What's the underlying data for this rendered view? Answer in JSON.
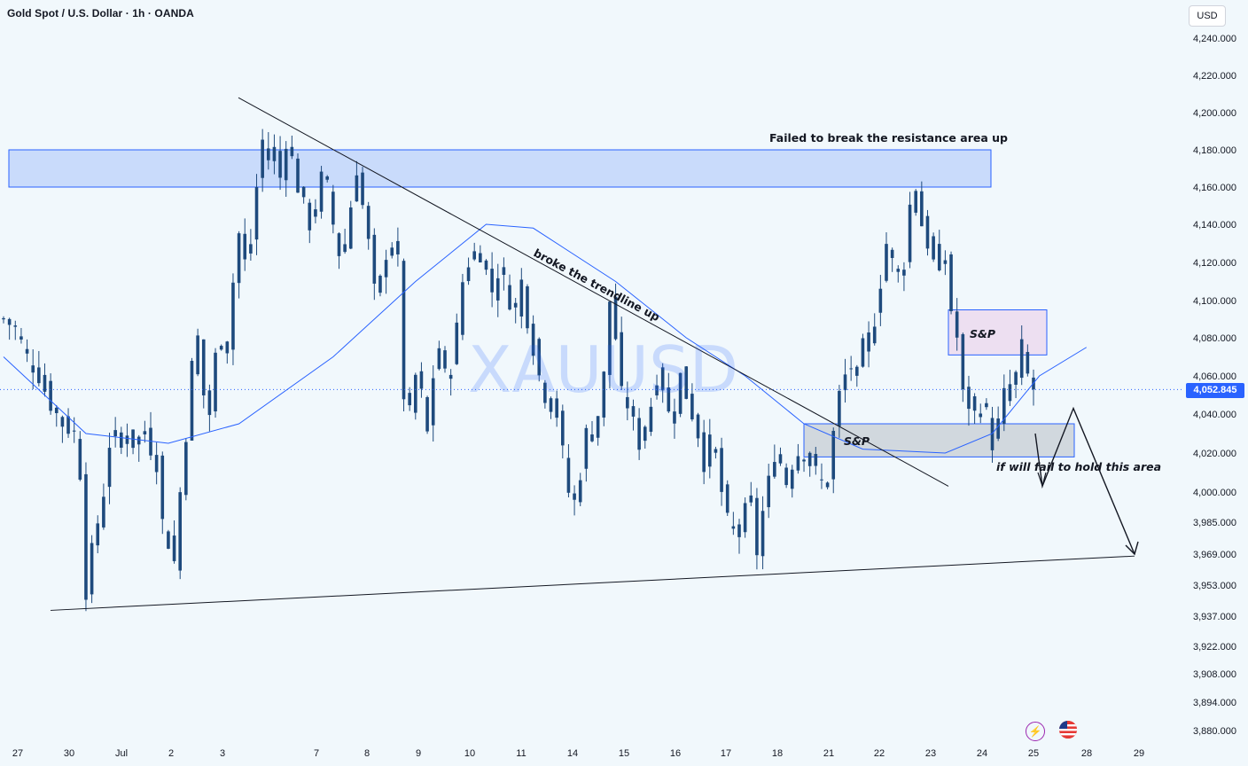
{
  "header": {
    "title": "Gold Spot / U.S. Dollar · 1h · OANDA"
  },
  "price_scale": {
    "currency": "USD",
    "last_price_label": "4,052.845"
  },
  "watermark": "XAUUSD",
  "annotations": {
    "resistance_note": "Failed to break the resistance area up",
    "trendline_note": "broke the trendline up",
    "sp_upper": "S&P",
    "sp_lower": "S&P",
    "hold_note": "if will fail to hold this area"
  },
  "icons": {
    "left": "lightning-icon",
    "right": "us-flag-icon"
  },
  "colors": {
    "background": "#f1f8fc",
    "candle": "#1e4a7d",
    "ma_line": "#2962ff",
    "zone_blue": "#bbd1fb",
    "zone_gray": "#c9cfd6",
    "zone_pink": "#ecdcef",
    "price_tag": "#2962ff"
  },
  "chart_data": {
    "type": "candlestick",
    "symbol": "XAUUSD",
    "timeframe": "1h",
    "y_ticks": [
      4240,
      4220,
      4200,
      4180,
      4160,
      4140,
      4120,
      4100,
      4080,
      4060,
      4040,
      4020,
      4000,
      3985,
      3969,
      3953,
      3937,
      3922,
      3908,
      3894,
      3880
    ],
    "y_tick_labels": [
      "4,240.000",
      "4,220.000",
      "4,200.000",
      "4,180.000",
      "4,160.000",
      "4,140.000",
      "4,120.000",
      "4,100.000",
      "4,080.000",
      "4,060.000",
      "4,040.000",
      "4,020.000",
      "4,000.000",
      "3,985.000",
      "3,969.000",
      "3,953.000",
      "3,937.000",
      "3,922.000",
      "3,908.000",
      "3,894.000",
      "3,880.000"
    ],
    "x_labels": [
      "27",
      "30",
      "Jul",
      "2",
      "3",
      "7",
      "8",
      "9",
      "10",
      "11",
      "14",
      "15",
      "16",
      "17",
      "18",
      "21",
      "22",
      "23",
      "24",
      "25",
      "28",
      "29"
    ],
    "last_price": 4052.845,
    "close_path": [
      [
        0,
        4090
      ],
      [
        2,
        4085
      ],
      [
        4,
        4070
      ],
      [
        6,
        4060
      ],
      [
        8,
        4045
      ],
      [
        10,
        4035
      ],
      [
        12,
        4030
      ],
      [
        13,
        4010
      ],
      [
        14,
        3950
      ],
      [
        15,
        3970
      ],
      [
        17,
        4000
      ],
      [
        18,
        4025
      ],
      [
        20,
        4030
      ],
      [
        22,
        4025
      ],
      [
        24,
        4030
      ],
      [
        26,
        4015
      ],
      [
        27,
        3985
      ],
      [
        28,
        3975
      ],
      [
        29,
        3965
      ],
      [
        30,
        4000
      ],
      [
        31,
        4030
      ],
      [
        32,
        4065
      ],
      [
        33,
        4080
      ],
      [
        34,
        4050
      ],
      [
        35,
        4040
      ],
      [
        36,
        4070
      ],
      [
        37,
        4080
      ],
      [
        38,
        4075
      ],
      [
        39,
        4110
      ],
      [
        40,
        4135
      ],
      [
        41,
        4120
      ],
      [
        42,
        4130
      ],
      [
        43,
        4160
      ],
      [
        44,
        4185
      ],
      [
        45,
        4175
      ],
      [
        46,
        4180
      ],
      [
        47,
        4165
      ],
      [
        48,
        4185
      ],
      [
        49,
        4175
      ],
      [
        50,
        4160
      ],
      [
        51,
        4150
      ],
      [
        52,
        4140
      ],
      [
        53,
        4150
      ],
      [
        54,
        4165
      ],
      [
        55,
        4160
      ],
      [
        56,
        4140
      ],
      [
        57,
        4125
      ],
      [
        58,
        4130
      ],
      [
        59,
        4150
      ],
      [
        60,
        4170
      ],
      [
        61,
        4150
      ],
      [
        62,
        4130
      ],
      [
        63,
        4105
      ],
      [
        64,
        4110
      ],
      [
        65,
        4125
      ],
      [
        66,
        4130
      ],
      [
        67,
        4120
      ],
      [
        68,
        4050
      ],
      [
        69,
        4040
      ],
      [
        70,
        4060
      ],
      [
        71,
        4050
      ],
      [
        72,
        4030
      ],
      [
        73,
        4060
      ],
      [
        74,
        4075
      ],
      [
        75,
        4060
      ],
      [
        76,
        4065
      ],
      [
        77,
        4085
      ],
      [
        78,
        4110
      ],
      [
        79,
        4120
      ],
      [
        80,
        4125
      ],
      [
        81,
        4125
      ],
      [
        82,
        4115
      ],
      [
        83,
        4105
      ],
      [
        84,
        4115
      ],
      [
        85,
        4110
      ],
      [
        86,
        4100
      ],
      [
        87,
        4095
      ],
      [
        88,
        4110
      ],
      [
        89,
        4090
      ],
      [
        90,
        4075
      ],
      [
        91,
        4060
      ],
      [
        92,
        4050
      ],
      [
        93,
        4045
      ],
      [
        94,
        4040
      ],
      [
        95,
        4020
      ],
      [
        96,
        4000
      ],
      [
        97,
        3995
      ],
      [
        98,
        4010
      ],
      [
        99,
        4030
      ],
      [
        100,
        4030
      ],
      [
        101,
        4040
      ],
      [
        102,
        4060
      ],
      [
        103,
        4100
      ],
      [
        104,
        4080
      ],
      [
        105,
        4050
      ],
      [
        106,
        4045
      ],
      [
        107,
        4035
      ],
      [
        108,
        4025
      ],
      [
        109,
        4035
      ],
      [
        110,
        4045
      ],
      [
        111,
        4060
      ],
      [
        112,
        4055
      ],
      [
        113,
        4040
      ],
      [
        114,
        4045
      ],
      [
        115,
        4060
      ],
      [
        116,
        4050
      ],
      [
        117,
        4040
      ],
      [
        118,
        4030
      ],
      [
        119,
        4015
      ],
      [
        120,
        4025
      ],
      [
        121,
        4020
      ],
      [
        122,
        4000
      ],
      [
        123,
        3985
      ],
      [
        124,
        3980
      ],
      [
        125,
        3985
      ],
      [
        126,
        3990
      ],
      [
        127,
        3995
      ],
      [
        128,
        3970
      ],
      [
        129,
        3990
      ],
      [
        130,
        4005
      ],
      [
        131,
        4020
      ],
      [
        132,
        4015
      ],
      [
        133,
        4005
      ],
      [
        134,
        4015
      ],
      [
        135,
        4020
      ],
      [
        136,
        4020
      ],
      [
        137,
        4015
      ],
      [
        138,
        4010
      ],
      [
        139,
        4005
      ],
      [
        140,
        4005
      ],
      [
        141,
        4030
      ],
      [
        142,
        4050
      ],
      [
        143,
        4060
      ],
      [
        144,
        4065
      ],
      [
        145,
        4060
      ],
      [
        146,
        4075
      ],
      [
        147,
        4080
      ],
      [
        148,
        4090
      ],
      [
        149,
        4110
      ],
      [
        150,
        4130
      ],
      [
        151,
        4120
      ],
      [
        152,
        4115
      ],
      [
        153,
        4120
      ],
      [
        154,
        4150
      ],
      [
        155,
        4160
      ],
      [
        156,
        4140
      ],
      [
        157,
        4130
      ],
      [
        158,
        4120
      ],
      [
        159,
        4125
      ],
      [
        160,
        4120
      ],
      [
        161,
        4095
      ],
      [
        162,
        4080
      ],
      [
        163,
        4050
      ],
      [
        164,
        4045
      ],
      [
        165,
        4040
      ],
      [
        166,
        4045
      ],
      [
        167,
        4040
      ],
      [
        168,
        4025
      ],
      [
        169,
        4035
      ],
      [
        170,
        4050
      ],
      [
        171,
        4055
      ],
      [
        172,
        4060
      ],
      [
        173,
        4075
      ],
      [
        174,
        4060
      ],
      [
        175,
        4053
      ]
    ],
    "moving_average_path": [
      [
        0,
        4070
      ],
      [
        14,
        4030
      ],
      [
        28,
        4025
      ],
      [
        40,
        4035
      ],
      [
        56,
        4070
      ],
      [
        70,
        4110
      ],
      [
        82,
        4140
      ],
      [
        90,
        4138
      ],
      [
        104,
        4110
      ],
      [
        116,
        4080
      ],
      [
        126,
        4060
      ],
      [
        136,
        4035
      ],
      [
        146,
        4022
      ],
      [
        160,
        4020
      ],
      [
        168,
        4030
      ],
      [
        176,
        4060
      ],
      [
        184,
        4075
      ]
    ],
    "overlays": {
      "resistance_zone": {
        "y_top": 4180,
        "y_bottom": 4160,
        "label_ref": "annotations.resistance_note"
      },
      "support_zone_lower": {
        "y_top": 4035,
        "y_bottom": 4018
      },
      "supply_zone_upper": {
        "y_top": 4095,
        "y_bottom": 4071
      },
      "descending_trendline": {
        "from": [
          4208
        ],
        "to": [
          4003
        ]
      },
      "ascending_support_line": {
        "from": [
          3940
        ],
        "to": [
          3968
        ]
      },
      "projection_path_prices": [
        4030,
        4003,
        4043,
        3969
      ]
    }
  }
}
